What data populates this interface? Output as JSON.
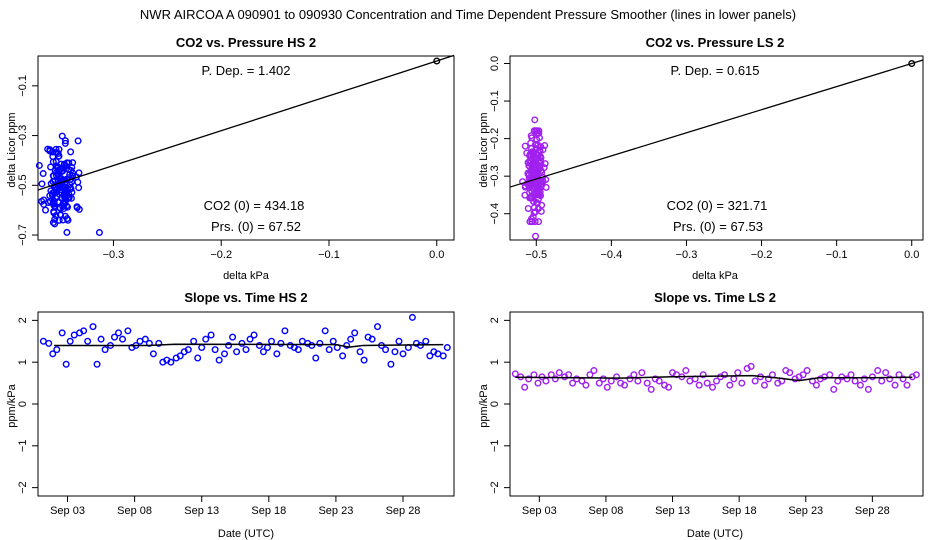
{
  "figure_title": "NWR   AIRCOA A   090901 to 090930   Concentration and Time Dependent Pressure Smoother (lines in lower panels)",
  "chart_data": [
    {
      "id": "hs-pressure",
      "type": "scatter",
      "title": "CO2 vs. Pressure HS 2",
      "xlabel": "delta kPa",
      "ylabel": "delta Licor ppm",
      "xlim": [
        -0.37,
        0.016
      ],
      "ylim": [
        -0.72,
        0.02
      ],
      "xticks": [
        -0.3,
        -0.2,
        -0.1,
        0.0
      ],
      "xtick_labels": [
        "−0.3",
        "−0.2",
        "−0.1",
        "0.0"
      ],
      "yticks": [
        -0.7,
        -0.5,
        -0.3,
        -0.1
      ],
      "ytick_labels": [
        "−0.7",
        "−0.5",
        "−0.3",
        "−0.1"
      ],
      "color": "#0000ff",
      "fit_line": {
        "slope": 1.402,
        "intercept": 0.0,
        "x_from": -0.37,
        "x_to": 0.016
      },
      "origin_point": {
        "x": 0.0,
        "y": 0.0
      },
      "cluster": {
        "x_center": -0.349,
        "x_spread": 0.007,
        "y_center": -0.5,
        "y_spread": 0.09,
        "count": 150,
        "seed": 11
      },
      "outliers": [
        {
          "x": -0.313,
          "y": -0.69
        },
        {
          "x": -0.338,
          "y": -0.45
        },
        {
          "x": -0.332,
          "y": -0.45
        }
      ],
      "annotations": {
        "p_dep": "P. Dep. =  1.402",
        "co2_0": "CO2 (0) =  434.18",
        "prs_0": "Prs. (0) =  67.52"
      }
    },
    {
      "id": "ls-pressure",
      "type": "scatter",
      "title": "CO2 vs. Pressure LS 2",
      "xlabel": "delta kPa",
      "ylabel": "delta Licor ppm",
      "xlim": [
        -0.535,
        0.015
      ],
      "ylim": [
        -0.47,
        0.02
      ],
      "xticks": [
        -0.5,
        -0.4,
        -0.3,
        -0.2,
        -0.1,
        0.0
      ],
      "xtick_labels": [
        "−0.5",
        "−0.4",
        "−0.3",
        "−0.2",
        "−0.1",
        "0.0"
      ],
      "yticks": [
        -0.4,
        -0.3,
        -0.2,
        -0.1,
        0.0
      ],
      "ytick_labels": [
        "−0.4",
        "−0.3",
        "−0.2",
        "−0.1",
        "0.0"
      ],
      "color": "#a020f0",
      "fit_line": {
        "slope": 0.615,
        "intercept": 0.0,
        "x_from": -0.535,
        "x_to": 0.015
      },
      "origin_point": {
        "x": 0.0,
        "y": 0.0
      },
      "cluster": {
        "x_center": -0.502,
        "x_spread": 0.006,
        "y_center": -0.3,
        "y_spread": 0.055,
        "count": 170,
        "seed": 23
      },
      "outliers": [
        {
          "x": -0.502,
          "y": -0.15
        },
        {
          "x": -0.501,
          "y": -0.46
        }
      ],
      "annotations": {
        "p_dep": "P. Dep. =  0.615",
        "co2_0": "CO2 (0) =  321.71",
        "prs_0": "Prs. (0) =  67.53"
      }
    },
    {
      "id": "hs-slope",
      "type": "scatter",
      "title": "Slope vs. Time HS 2",
      "xlabel": "Date (UTC)",
      "ylabel": "ppm/kPa",
      "xlim": [
        0.8,
        31.8
      ],
      "ylim": [
        -2.2,
        2.2
      ],
      "xticks": [
        3,
        8,
        13,
        18,
        23,
        28
      ],
      "xtick_labels": [
        "Sep 03",
        "Sep 08",
        "Sep 13",
        "Sep 18",
        "Sep 23",
        "Sep 28"
      ],
      "yticks": [
        -2,
        -1,
        0,
        1,
        2
      ],
      "ytick_labels": [
        "−2",
        "−1",
        "0",
        "1",
        "2"
      ],
      "color": "#0000ff",
      "smoother": [
        [
          2.0,
          1.4
        ],
        [
          9.0,
          1.4
        ],
        [
          11.0,
          1.43
        ],
        [
          23.0,
          1.42
        ],
        [
          24.0,
          1.36
        ],
        [
          25.0,
          1.4
        ],
        [
          31.0,
          1.42
        ]
      ],
      "x": [
        1.2,
        1.6,
        1.9,
        2.2,
        2.6,
        2.9,
        3.2,
        3.5,
        3.9,
        4.2,
        4.5,
        4.9,
        5.2,
        5.5,
        5.8,
        6.2,
        6.5,
        6.8,
        7.1,
        7.5,
        7.8,
        8.1,
        8.4,
        8.8,
        9.1,
        9.4,
        9.8,
        10.1,
        10.4,
        10.7,
        11.1,
        11.4,
        11.7,
        12.0,
        12.4,
        12.7,
        13.0,
        13.3,
        13.7,
        14.0,
        14.3,
        14.7,
        15.0,
        15.3,
        15.6,
        16.0,
        16.3,
        16.6,
        16.9,
        17.3,
        17.6,
        17.9,
        18.2,
        18.6,
        18.9,
        19.2,
        19.6,
        19.9,
        20.2,
        20.5,
        20.9,
        21.2,
        21.5,
        21.8,
        22.2,
        22.5,
        22.8,
        23.1,
        23.5,
        23.8,
        24.1,
        24.4,
        24.8,
        25.1,
        25.4,
        25.7,
        26.1,
        26.4,
        26.7,
        27.1,
        27.4,
        27.7,
        28.0,
        28.4,
        28.7,
        29.0,
        29.3,
        29.7,
        30.0,
        30.3,
        30.6,
        31.0,
        31.3
      ],
      "y": [
        1.5,
        1.45,
        1.2,
        1.3,
        1.7,
        0.95,
        1.5,
        1.65,
        1.7,
        1.75,
        1.5,
        1.85,
        0.95,
        1.55,
        1.3,
        1.4,
        1.6,
        1.7,
        1.55,
        1.75,
        1.35,
        1.4,
        1.5,
        1.55,
        1.45,
        1.2,
        1.45,
        1.0,
        1.05,
        1.0,
        1.1,
        1.15,
        1.25,
        1.3,
        1.5,
        1.1,
        1.35,
        1.55,
        1.65,
        1.3,
        1.05,
        1.2,
        1.4,
        1.6,
        1.25,
        1.45,
        1.3,
        1.55,
        1.65,
        1.4,
        1.25,
        1.35,
        1.5,
        1.2,
        1.45,
        1.75,
        1.4,
        1.35,
        1.3,
        1.5,
        1.45,
        1.4,
        1.1,
        1.45,
        1.75,
        1.3,
        1.5,
        1.35,
        1.15,
        1.4,
        1.55,
        1.7,
        1.25,
        1.05,
        1.6,
        1.55,
        1.85,
        1.4,
        1.3,
        0.95,
        1.25,
        1.5,
        1.2,
        1.35,
        2.07,
        1.45,
        1.4,
        1.5,
        1.15,
        1.25,
        1.2,
        1.15,
        1.35
      ]
    },
    {
      "id": "ls-slope",
      "type": "scatter",
      "title": "Slope vs. Time LS 2",
      "xlabel": "Date (UTC)",
      "ylabel": "ppm/kPa",
      "xlim": [
        0.8,
        31.8
      ],
      "ylim": [
        -2.2,
        2.2
      ],
      "xticks": [
        3,
        8,
        13,
        18,
        23,
        28
      ],
      "xtick_labels": [
        "Sep 03",
        "Sep 08",
        "Sep 13",
        "Sep 18",
        "Sep 23",
        "Sep 28"
      ],
      "yticks": [
        -2,
        -1,
        0,
        1,
        2
      ],
      "ytick_labels": [
        "−2",
        "−1",
        "0",
        "1",
        "2"
      ],
      "color": "#a020f0",
      "smoother": [
        [
          1.2,
          0.64
        ],
        [
          9.0,
          0.62
        ],
        [
          13.0,
          0.65
        ],
        [
          19.0,
          0.68
        ],
        [
          21.0,
          0.62
        ],
        [
          22.5,
          0.56
        ],
        [
          24.0,
          0.63
        ],
        [
          28.0,
          0.63
        ],
        [
          31.0,
          0.64
        ]
      ],
      "x": [
        1.2,
        1.6,
        1.9,
        2.2,
        2.6,
        2.9,
        3.2,
        3.5,
        3.9,
        4.2,
        4.5,
        4.9,
        5.2,
        5.5,
        5.8,
        6.2,
        6.5,
        6.8,
        7.1,
        7.5,
        7.8,
        8.1,
        8.4,
        8.8,
        9.1,
        9.4,
        9.8,
        10.1,
        10.4,
        10.7,
        11.1,
        11.4,
        11.7,
        12.0,
        12.4,
        12.7,
        13.0,
        13.3,
        13.7,
        14.0,
        14.3,
        14.7,
        15.0,
        15.3,
        15.6,
        16.0,
        16.3,
        16.6,
        16.9,
        17.3,
        17.6,
        17.9,
        18.2,
        18.6,
        18.9,
        19.2,
        19.6,
        19.9,
        20.2,
        20.5,
        20.9,
        21.2,
        21.5,
        21.8,
        22.2,
        22.5,
        22.8,
        23.1,
        23.5,
        23.8,
        24.1,
        24.4,
        24.8,
        25.1,
        25.4,
        25.7,
        26.1,
        26.4,
        26.7,
        27.1,
        27.4,
        27.7,
        28.0,
        28.4,
        28.7,
        29.0,
        29.3,
        29.7,
        30.0,
        30.3,
        30.6,
        31.0,
        31.3
      ],
      "y": [
        0.72,
        0.65,
        0.4,
        0.6,
        0.7,
        0.5,
        0.65,
        0.55,
        0.7,
        0.6,
        0.75,
        0.65,
        0.7,
        0.5,
        0.6,
        0.55,
        0.45,
        0.7,
        0.8,
        0.5,
        0.6,
        0.4,
        0.55,
        0.65,
        0.5,
        0.45,
        0.6,
        0.7,
        0.55,
        0.75,
        0.5,
        0.35,
        0.6,
        0.55,
        0.45,
        0.4,
        0.75,
        0.7,
        0.65,
        0.8,
        0.55,
        0.6,
        0.45,
        0.7,
        0.5,
        0.4,
        0.55,
        0.65,
        0.7,
        0.45,
        0.6,
        0.75,
        0.5,
        0.85,
        0.9,
        0.55,
        0.65,
        0.45,
        0.6,
        0.7,
        0.5,
        0.55,
        0.8,
        0.75,
        0.6,
        0.65,
        0.7,
        0.8,
        0.55,
        0.45,
        0.6,
        0.65,
        0.7,
        0.35,
        0.55,
        0.65,
        0.6,
        0.7,
        0.55,
        0.45,
        0.6,
        0.35,
        0.65,
        0.8,
        0.55,
        0.75,
        0.6,
        0.45,
        0.7,
        0.6,
        0.45,
        0.65,
        0.7
      ]
    }
  ]
}
